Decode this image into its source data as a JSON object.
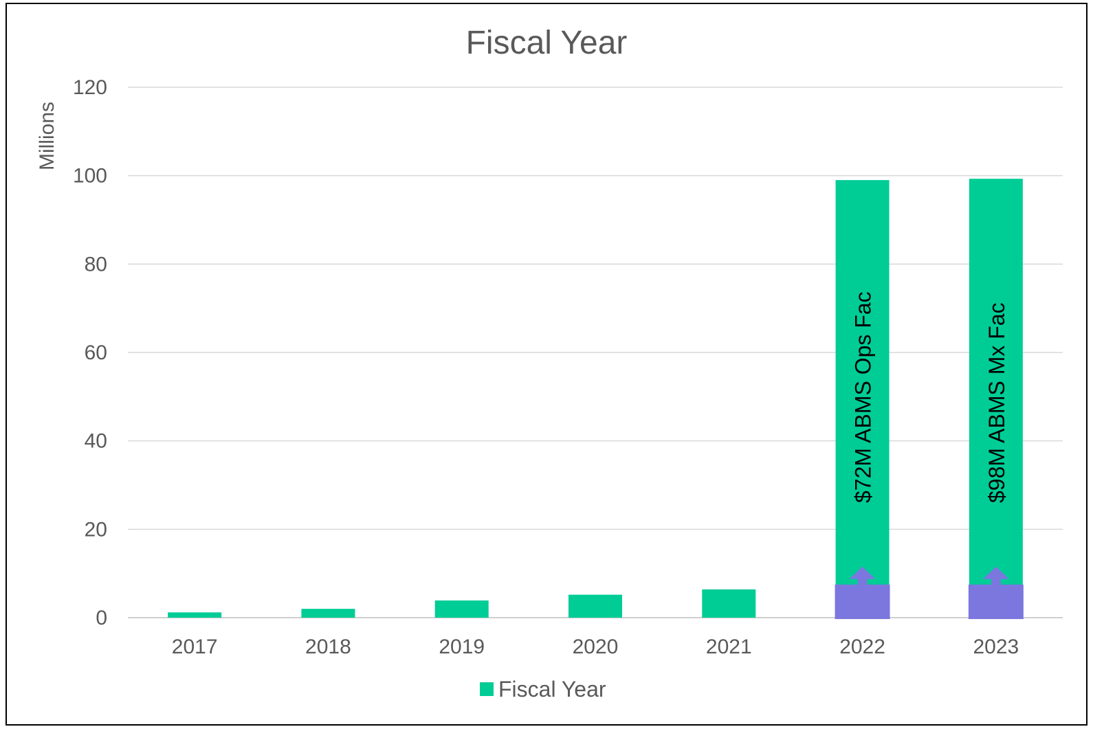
{
  "chart_data": {
    "type": "bar",
    "title": "Fiscal Year",
    "ylabel": "Millions",
    "xlabel": "",
    "ylim": [
      0,
      120
    ],
    "yticks": [
      0,
      20,
      40,
      60,
      80,
      100,
      120
    ],
    "grid": true,
    "legend": {
      "position": "bottom",
      "entries": [
        "Fiscal Year"
      ]
    },
    "categories": [
      "2017",
      "2018",
      "2019",
      "2020",
      "2021",
      "2022",
      "2023"
    ],
    "series": [
      {
        "name": "Fiscal Year",
        "color": "#00CC96",
        "values": [
          1.2,
          2.0,
          3.9,
          5.2,
          6.4,
          99.0,
          99.3
        ]
      }
    ],
    "overlays": [
      {
        "category": "2022",
        "value": 7.5,
        "color": "#7B77DE",
        "shape": "up-arrow"
      },
      {
        "category": "2023",
        "value": 7.5,
        "color": "#7B77DE",
        "shape": "up-arrow"
      }
    ],
    "annotations": [
      {
        "category": "2022",
        "text": "$72M ABMS Ops Fac"
      },
      {
        "category": "2023",
        "text": "$98M ABMS Mx Fac"
      }
    ]
  }
}
